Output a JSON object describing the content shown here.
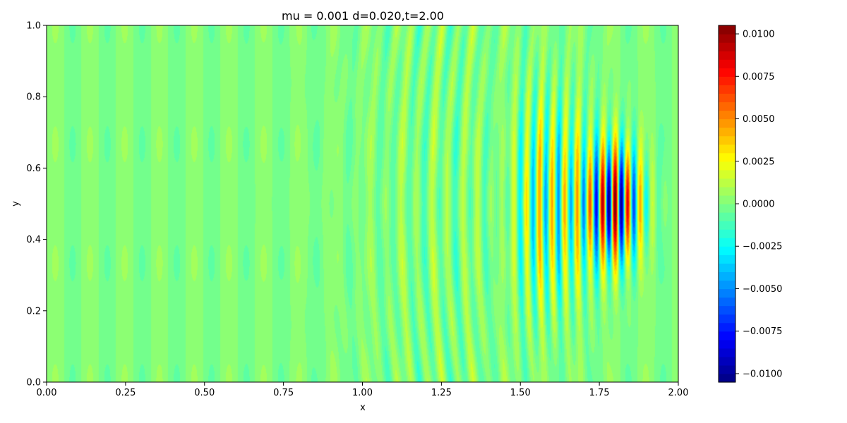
{
  "chart_data": {
    "type": "heatmap",
    "title": "mu = 0.001 d=0.020,t=2.00",
    "xlabel": "x",
    "ylabel": "y",
    "xlim": [
      0.0,
      2.0
    ],
    "ylim": [
      0.0,
      1.0
    ],
    "x_ticks": [
      0.0,
      0.25,
      0.5,
      0.75,
      1.0,
      1.25,
      1.5,
      1.75,
      2.0
    ],
    "x_tick_labels": [
      "0.00",
      "0.25",
      "0.50",
      "0.75",
      "1.00",
      "1.25",
      "1.50",
      "1.75",
      "2.00"
    ],
    "y_ticks": [
      0.0,
      0.2,
      0.4,
      0.6,
      0.8,
      1.0
    ],
    "y_tick_labels": [
      "0.0",
      "0.2",
      "0.4",
      "0.6",
      "0.8",
      "1.0"
    ],
    "colormap": "jet",
    "colorbar": {
      "vmin": -0.0105,
      "vmax": 0.0105,
      "levels": 42,
      "ticks": [
        -0.01,
        -0.0075,
        -0.005,
        -0.0025,
        0.0,
        0.0025,
        0.005,
        0.0075,
        0.01
      ],
      "tick_labels": [
        "−0.0100",
        "−0.0075",
        "−0.0050",
        "−0.0025",
        "0.0000",
        "0.0025",
        "0.0050",
        "0.0075",
        "0.0100"
      ]
    },
    "field": {
      "description_free": true,
      "wavefront_x": 1.97,
      "peak_x": 1.8,
      "peak_amplitude": 0.0103,
      "center_y": 0.5,
      "wavelength": 0.04,
      "background_amplitude": 0.0006
    }
  }
}
